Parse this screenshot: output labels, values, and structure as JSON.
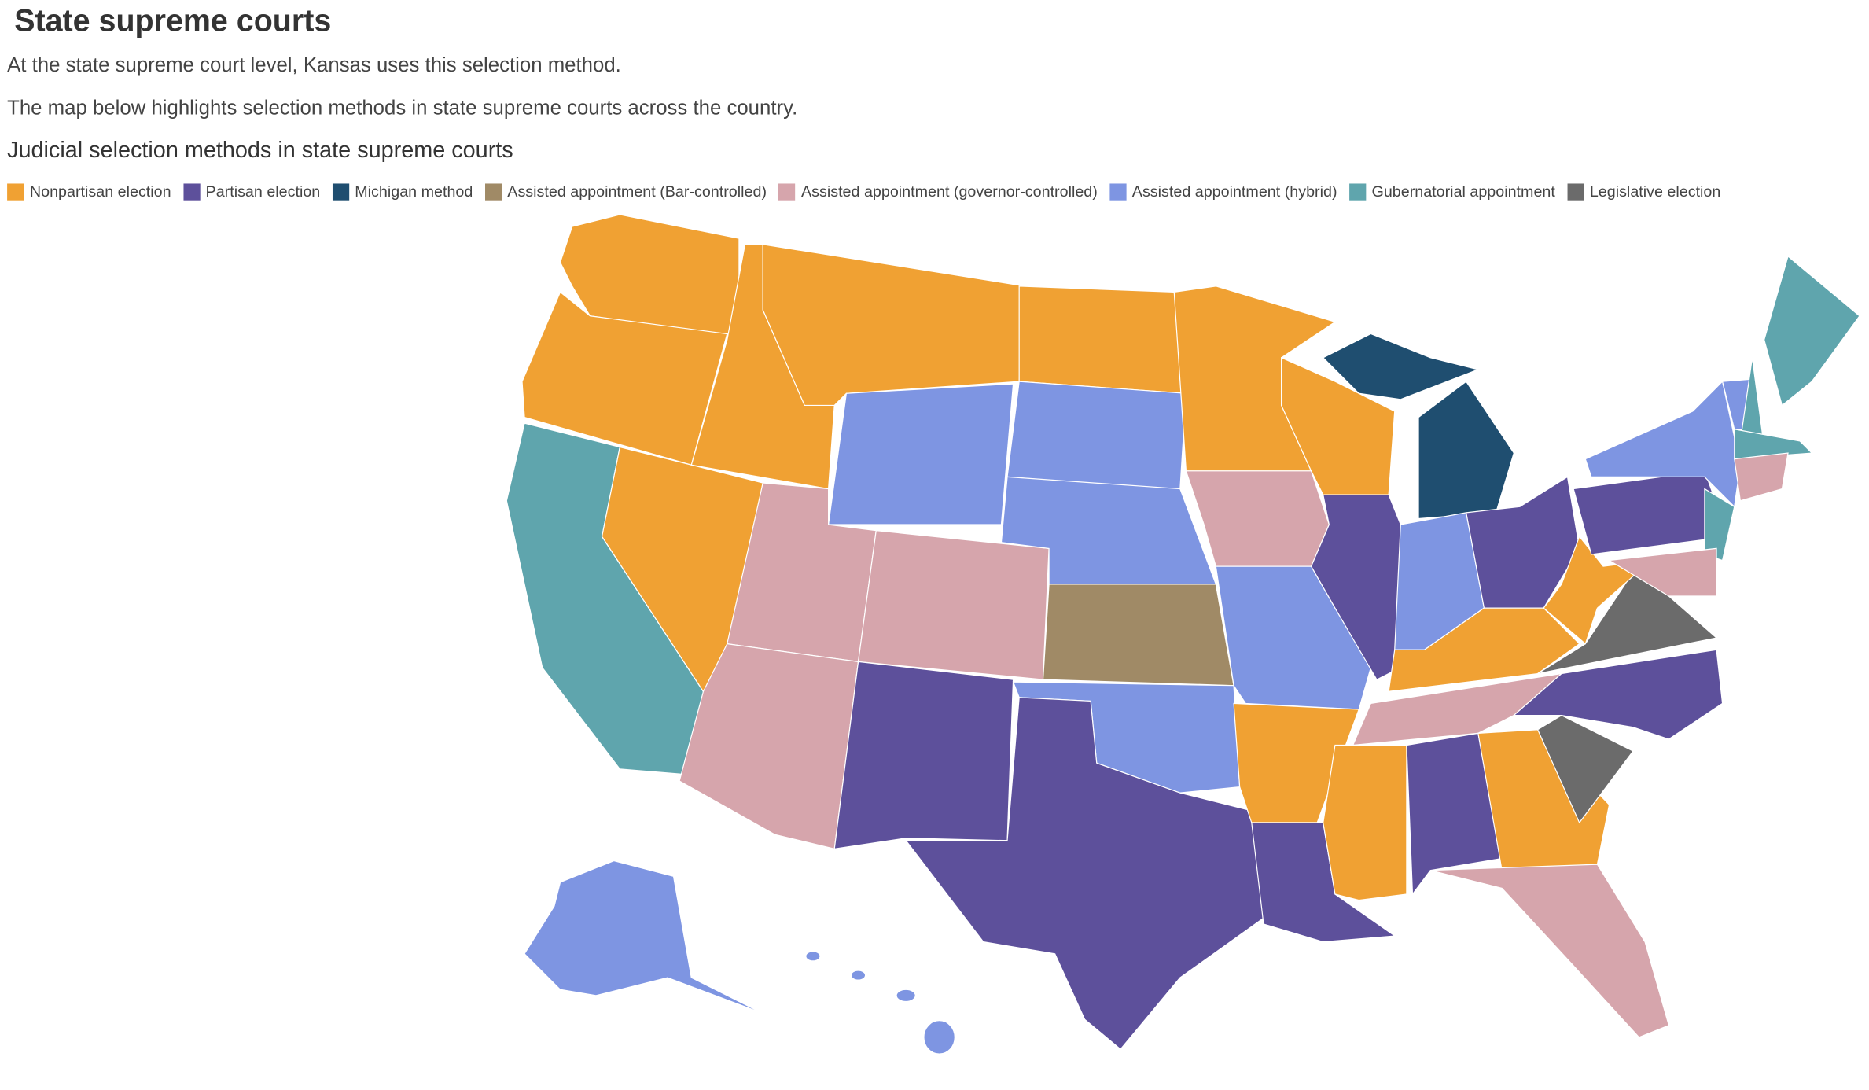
{
  "header": {
    "title": "State supreme courts"
  },
  "paragraphs": [
    "At the state supreme court level, Kansas uses this selection method.",
    "The map below highlights selection methods in state supreme courts across the country."
  ],
  "map": {
    "title": "Judicial selection methods in state supreme courts",
    "legend": [
      {
        "label": "Nonpartisan election",
        "color": "#f0a133"
      },
      {
        "label": "Partisan election",
        "color": "#5d509b"
      },
      {
        "label": "Michigan method",
        "color": "#1f4e70"
      },
      {
        "label": "Assisted appointment (Bar-controlled)",
        "color": "#a08a66"
      },
      {
        "label": "Assisted appointment (governor-controlled)",
        "color": "#d6a5ac"
      },
      {
        "label": "Assisted appointment (hybrid)",
        "color": "#7e95e2"
      },
      {
        "label": "Gubernatorial appointment",
        "color": "#5fa5ad"
      },
      {
        "label": "Legislative election",
        "color": "#6b6b6b"
      }
    ]
  }
}
